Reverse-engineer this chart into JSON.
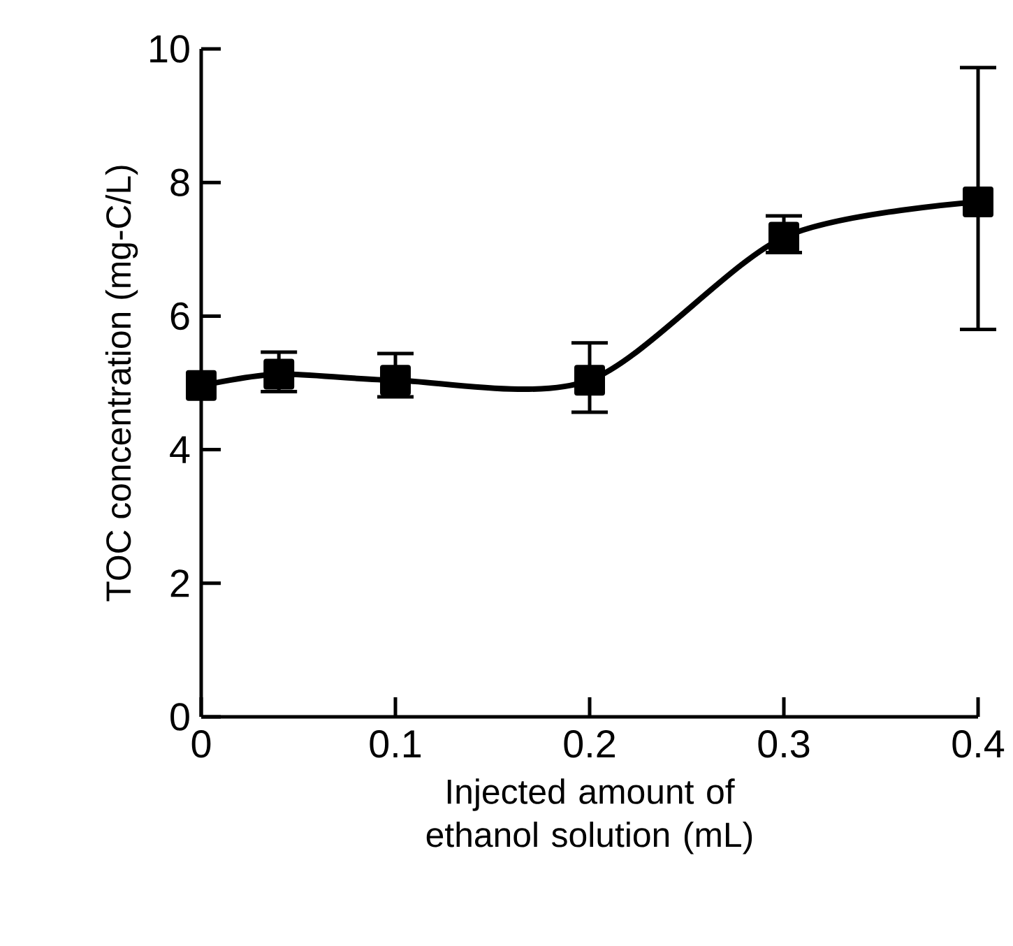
{
  "chart_data": {
    "type": "line",
    "xlabel": "Injected amount of ethanol solution (mL)",
    "ylabel": "TOC concentration (mg-C/L)",
    "x": [
      0,
      0.04,
      0.1,
      0.2,
      0.3,
      0.4
    ],
    "series": [
      {
        "color": "#000000",
        "values": [
          4.96,
          5.13,
          5.04,
          5.04,
          7.18,
          7.71
        ],
        "errors": [
          null,
          [
            4.87,
            5.46
          ],
          [
            4.79,
            5.44
          ],
          [
            4.56,
            5.6
          ],
          [
            6.95,
            7.5
          ],
          [
            5.8,
            9.72
          ]
        ]
      }
    ],
    "xlim": [
      0,
      0.4
    ],
    "ylim": [
      0,
      10
    ],
    "xticks": [
      0,
      0.1,
      0.2,
      0.3,
      0.4
    ],
    "yticks": [
      0,
      2,
      4,
      6,
      8,
      10
    ],
    "marker": "square",
    "line_style": "solid",
    "grid": false
  }
}
